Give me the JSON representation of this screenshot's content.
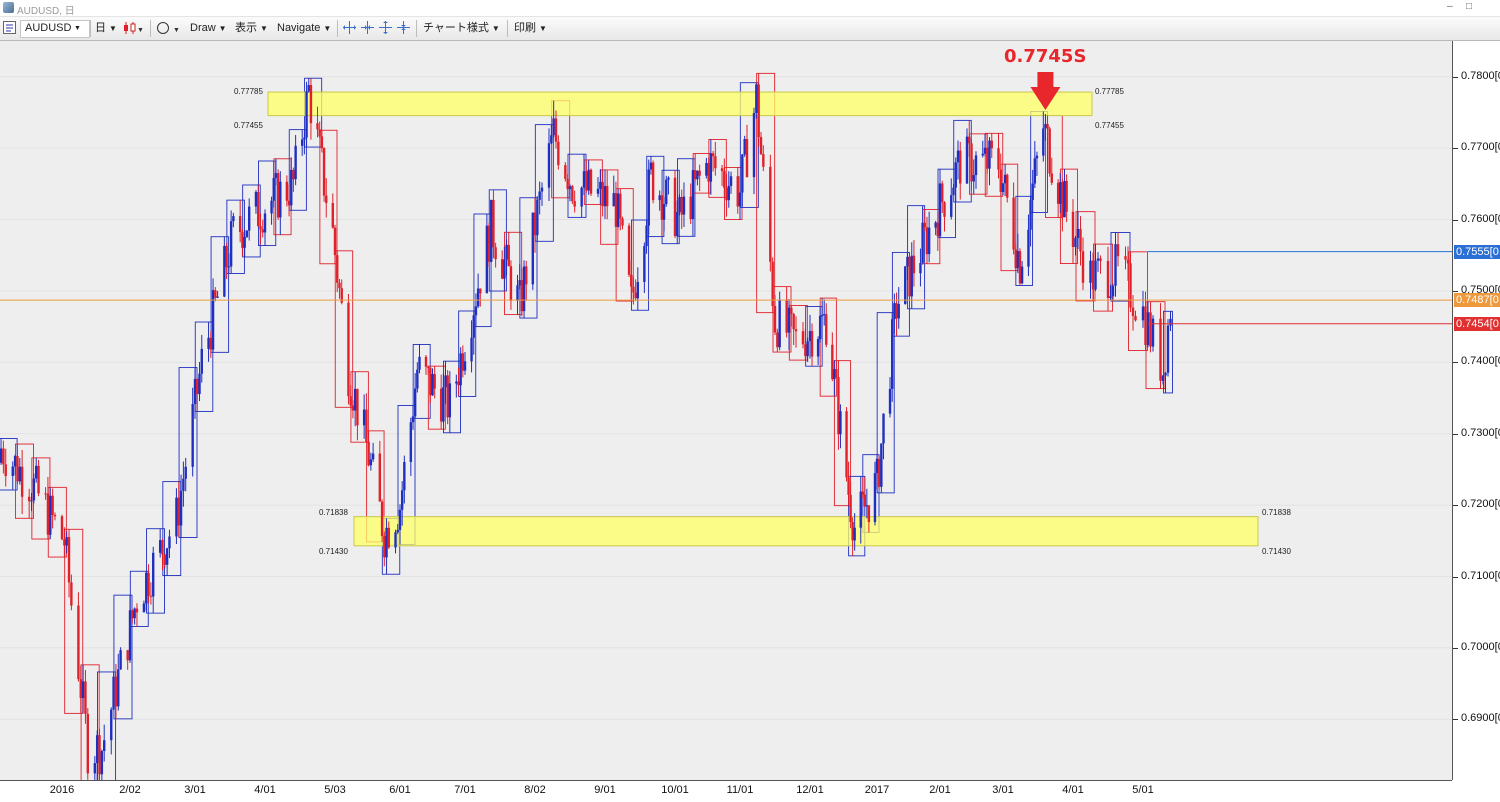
{
  "window": {
    "title": "AUDUSD, 日",
    "minimize_glyph": "‒",
    "maximize_glyph": "□"
  },
  "toolbar": {
    "symbol": "AUDUSD",
    "timeframe": "日",
    "draw_label": "Draw",
    "view_label": "表示",
    "navigate_label": "Navigate",
    "chart_style_label": "チャート様式",
    "print_label": "印刷",
    "dropdown_glyph": "▼"
  },
  "annotation": {
    "text": "0.7745S",
    "color": "#e8272c"
  },
  "zones": {
    "upper": {
      "top_label": "0.77785",
      "bottom_label": "0.77455",
      "top": 0.77785,
      "bottom": 0.77455
    },
    "lower": {
      "top_label": "0.71838",
      "bottom_label": "0.71430",
      "top": 0.71838,
      "bottom": 0.7143
    }
  },
  "price_axis": {
    "ticks": [
      "0.7800[0",
      "0.7700[0",
      "0.7600[0",
      "0.7500[0",
      "0.7400[0",
      "0.7300[0",
      "0.7200[0",
      "0.7100[0",
      "0.7000[0",
      "0.6900[0"
    ],
    "tick_values": [
      0.78,
      0.77,
      0.76,
      0.75,
      0.74,
      0.73,
      0.72,
      0.71,
      0.7,
      0.69
    ],
    "labels": [
      {
        "text": "0.7555[0",
        "value": 0.7555,
        "color": "#2a6fd6"
      },
      {
        "text": "0.7487[0",
        "value": 0.7487,
        "color": "#ee9a3c"
      },
      {
        "text": "0.7454[0",
        "value": 0.7454,
        "color": "#e03030"
      }
    ]
  },
  "time_axis": {
    "ticks": [
      "2016",
      "2/02",
      "3/01",
      "4/01",
      "5/03",
      "6/01",
      "7/01",
      "8/02",
      "9/01",
      "10/01",
      "11/01",
      "12/01",
      "2017",
      "2/01",
      "3/01",
      "4/01",
      "5/01"
    ]
  },
  "colors": {
    "up": "#1f2fc0",
    "down": "#e0202a",
    "zone_fill": "#ffff66",
    "zone_stroke": "#c8c84a",
    "current_price": "#ee9a3c",
    "chart_bg": "#eeeeee"
  },
  "chart_data": {
    "type": "candlestick",
    "symbol": "AUDUSD",
    "timeframe": "daily",
    "ylim": [
      0.6815,
      0.785
    ],
    "x_start": "2015-12-09",
    "x_end": "2017-05-09",
    "y_ticks": [
      0.78,
      0.77,
      0.76,
      0.75,
      0.74,
      0.73,
      0.72,
      0.71,
      0.7,
      0.69
    ],
    "x_ticks": [
      "2016",
      "2/02",
      "3/01",
      "4/01",
      "5/03",
      "6/01",
      "7/01",
      "8/02",
      "9/01",
      "10/01",
      "11/01",
      "12/01",
      "2017",
      "2/01",
      "3/01",
      "4/01",
      "5/01"
    ],
    "close_path": [
      {
        "date": "2015-12-09",
        "close": 0.728
      },
      {
        "date": "2015-12-22",
        "close": 0.723
      },
      {
        "date": "2016-01-05",
        "close": 0.715
      },
      {
        "date": "2016-01-15",
        "close": 0.686
      },
      {
        "date": "2016-01-21",
        "close": 0.686
      },
      {
        "date": "2016-02-05",
        "close": 0.707
      },
      {
        "date": "2016-02-22",
        "close": 0.718
      },
      {
        "date": "2016-03-04",
        "close": 0.74
      },
      {
        "date": "2016-03-18",
        "close": 0.758
      },
      {
        "date": "2016-04-01",
        "close": 0.762
      },
      {
        "date": "2016-04-14",
        "close": 0.765
      },
      {
        "date": "2016-04-21",
        "close": 0.778
      },
      {
        "date": "2016-05-02",
        "close": 0.758
      },
      {
        "date": "2016-05-09",
        "close": 0.739
      },
      {
        "date": "2016-05-18",
        "close": 0.727
      },
      {
        "date": "2016-05-25",
        "close": 0.716
      },
      {
        "date": "2016-06-01",
        "close": 0.72
      },
      {
        "date": "2016-06-09",
        "close": 0.739
      },
      {
        "date": "2016-06-24",
        "close": 0.734
      },
      {
        "date": "2016-07-13",
        "close": 0.759
      },
      {
        "date": "2016-07-26",
        "close": 0.748
      },
      {
        "date": "2016-08-10",
        "close": 0.772
      },
      {
        "date": "2016-08-18",
        "close": 0.765
      },
      {
        "date": "2016-09-06",
        "close": 0.762
      },
      {
        "date": "2016-09-13",
        "close": 0.748
      },
      {
        "date": "2016-09-22",
        "close": 0.766
      },
      {
        "date": "2016-10-05",
        "close": 0.76
      },
      {
        "date": "2016-10-18",
        "close": 0.768
      },
      {
        "date": "2016-11-01",
        "close": 0.764
      },
      {
        "date": "2016-11-08",
        "close": 0.777
      },
      {
        "date": "2016-11-16",
        "close": 0.746
      },
      {
        "date": "2016-11-25",
        "close": 0.743
      },
      {
        "date": "2016-12-09",
        "close": 0.746
      },
      {
        "date": "2016-12-20",
        "close": 0.722
      },
      {
        "date": "2016-12-23",
        "close": 0.717
      },
      {
        "date": "2017-01-03",
        "close": 0.723
      },
      {
        "date": "2017-01-12",
        "close": 0.748
      },
      {
        "date": "2017-02-01",
        "close": 0.762
      },
      {
        "date": "2017-02-10",
        "close": 0.768
      },
      {
        "date": "2017-02-27",
        "close": 0.768
      },
      {
        "date": "2017-03-09",
        "close": 0.754
      },
      {
        "date": "2017-03-20",
        "close": 0.773
      },
      {
        "date": "2017-03-28",
        "close": 0.764
      },
      {
        "date": "2017-04-10",
        "close": 0.752
      },
      {
        "date": "2017-04-21",
        "close": 0.753
      },
      {
        "date": "2017-05-01",
        "close": 0.747
      },
      {
        "date": "2017-05-09",
        "close": 0.739
      },
      {
        "date": "2017-05-12",
        "close": 0.748
      }
    ],
    "levels": [
      {
        "name": "resistance zone",
        "from": 0.77455,
        "to": 0.77785
      },
      {
        "name": "support zone",
        "from": 0.7143,
        "to": 0.71838
      },
      {
        "name": "current price",
        "value": 0.7487
      },
      {
        "name": "upper line",
        "value": 0.7555
      },
      {
        "name": "lower line",
        "value": 0.7454
      }
    ],
    "annotations": [
      {
        "text": "0.7745S",
        "date": "2017-03-21",
        "value": 0.7745
      }
    ]
  }
}
